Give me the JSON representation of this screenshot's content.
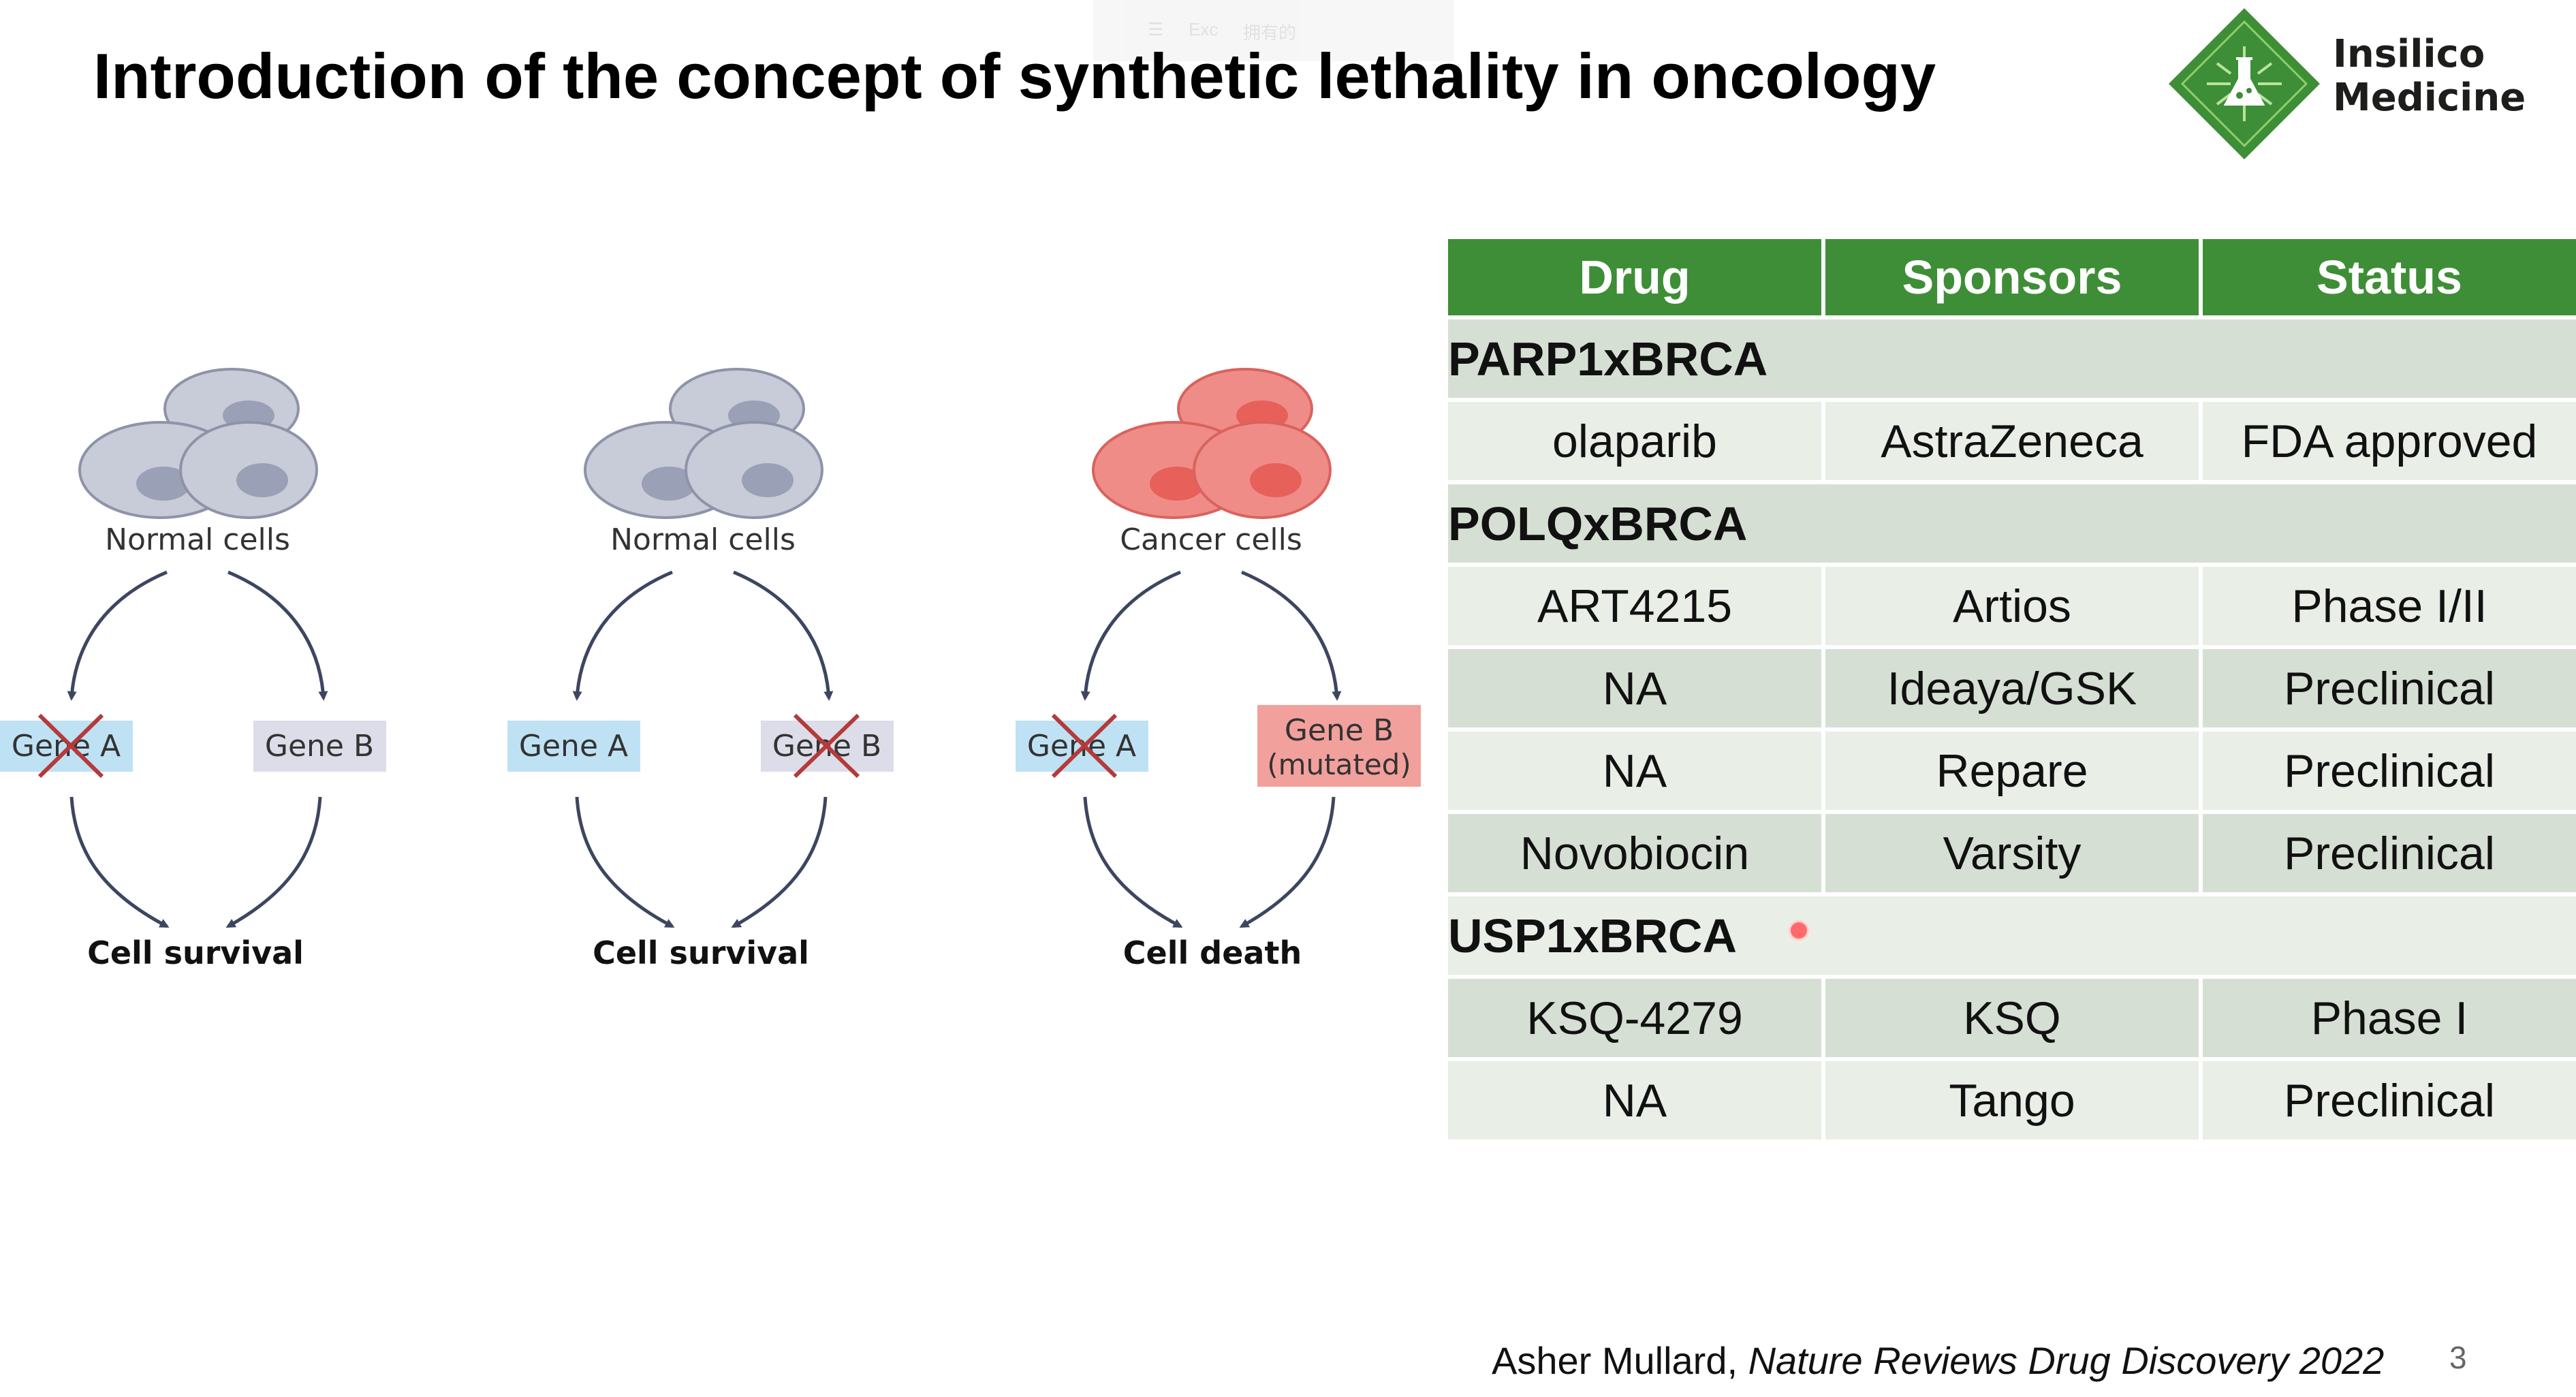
{
  "title": "Introduction of the concept of synthetic lethality in oncology",
  "toolbar": {
    "item1": "☰",
    "item2": "Exc",
    "item3": "拥有的"
  },
  "logo": {
    "line1": "Insilico",
    "line2": "Medicine",
    "brand_color": "#3e8e37"
  },
  "diagram": {
    "panels": [
      {
        "cells_label": "Normal cells",
        "gene_a": "Gene A",
        "gene_b": "Gene B",
        "outcome": "Cell survival",
        "knocked_out": "A",
        "cell_color": "#c8cbd8"
      },
      {
        "cells_label": "Normal cells",
        "gene_a": "Gene A",
        "gene_b": "Gene B",
        "outcome": "Cell survival",
        "knocked_out": "B",
        "cell_color": "#c8cbd8"
      },
      {
        "cells_label": "Cancer cells",
        "gene_a": "Gene A",
        "gene_b_line1": "Gene B",
        "gene_b_line2": "(mutated)",
        "outcome": "Cell death",
        "knocked_out": "A",
        "cell_color": "#f08c87"
      }
    ]
  },
  "table": {
    "headers": [
      "Drug",
      "Sponsors",
      "Status"
    ],
    "groups": [
      {
        "name": "PARP1xBRCA",
        "rows": [
          [
            "olaparib",
            "AstraZeneca",
            "FDA approved"
          ]
        ]
      },
      {
        "name": "POLQxBRCA",
        "rows": [
          [
            "ART4215",
            "Artios",
            "Phase I/II"
          ],
          [
            "NA",
            "Ideaya/GSK",
            "Preclinical"
          ],
          [
            "NA",
            "Repare",
            "Preclinical"
          ],
          [
            "Novobiocin",
            "Varsity",
            "Preclinical"
          ]
        ]
      },
      {
        "name": "USP1xBRCA",
        "rows": [
          [
            "KSQ-4279",
            "KSQ",
            "Phase I"
          ],
          [
            "NA",
            "Tango",
            "Preclinical"
          ]
        ]
      }
    ]
  },
  "citation": {
    "author": "Asher Mullard, ",
    "source": "Nature Reviews Drug Discovery 2022"
  },
  "page_number": "3"
}
